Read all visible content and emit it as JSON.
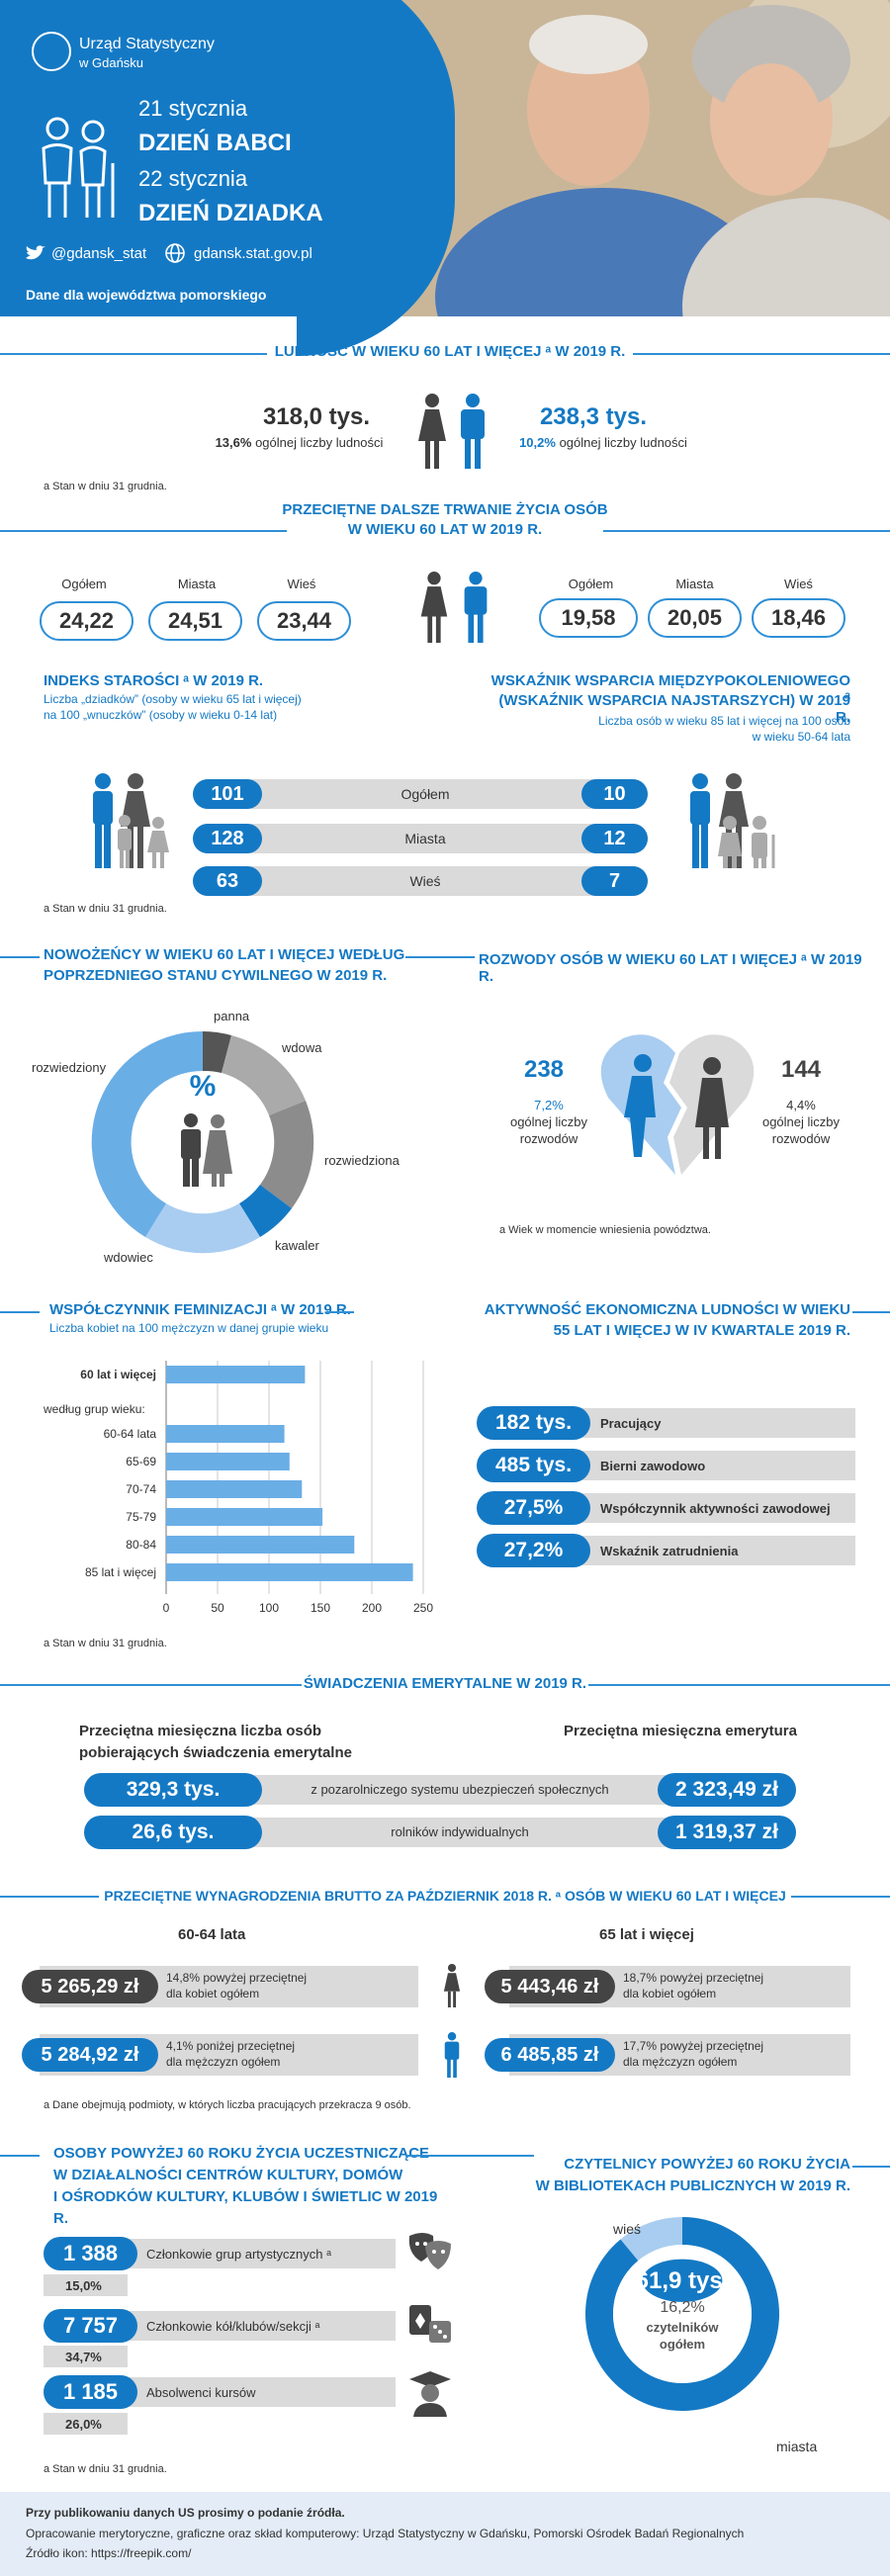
{
  "header": {
    "org_name": "Urząd Statystyczny",
    "org_sub": "w Gdańsku",
    "date1": "21 stycznia",
    "title1": "DZIEŃ BABCI",
    "date2": "22 stycznia",
    "title2": "DZIEŃ DZIADKA",
    "twitter": "@gdansk_stat",
    "website": "gdansk.stat.gov.pl",
    "region": "Dane dla województwa pomorskiego"
  },
  "population": {
    "title": "LUDNOŚĆ W WIEKU 60 LAT I WIĘCEJ ᵃ W 2019 R.",
    "women_value": "318,0 tys.",
    "women_pct": "13,6%",
    "women_desc": "ogólnej liczby ludności",
    "men_value": "238,3 tys.",
    "men_pct": "10,2%",
    "men_desc": "ogólnej liczby ludności",
    "footnote": "a Stan w dniu 31 grudnia."
  },
  "life": {
    "title1": "PRZECIĘTNE DALSZE TRWANIE ŻYCIA OSÓB",
    "title2": "W WIEKU 60 LAT W 2019 R.",
    "labels": [
      "Ogółem",
      "Miasta",
      "Wieś"
    ],
    "women": [
      "24,22",
      "24,51",
      "23,44"
    ],
    "men": [
      "19,58",
      "20,05",
      "18,46"
    ]
  },
  "ageing": {
    "title": "INDEKS STAROŚCI ᵃ W 2019 R.",
    "desc1": "Liczba „dziadków” (osoby w wieku 65 lat i więcej)",
    "desc2": "na 100 „wnuczków” (osoby w wieku 0-14 lat)",
    "support_title1": "WSKAŹNIK WSPARCIA MIĘDZYPOKOLENIOWEGO ᵃ",
    "support_title2": "(WSKAŹNIK WSPARCIA NAJSTARSZYCH) W 2019 R.",
    "support_desc1": "Liczba osób w wieku 85 lat i więcej na 100 osób",
    "support_desc2": "w wieku 50-64 lata",
    "rows": [
      {
        "label": "Ogółem",
        "left": "101",
        "right": "10"
      },
      {
        "label": "Miasta",
        "left": "128",
        "right": "12"
      },
      {
        "label": "Wieś",
        "left": "63",
        "right": "7"
      }
    ],
    "footnote": "a Stan w dniu 31 grudnia."
  },
  "marriage": {
    "title1": "NOWOŻEŃCY W WIEKU 60 LAT I WIĘCEJ WEDŁUG",
    "title2": "POPRZEDNIEGO STANU CYWILNEGO W 2019 R.",
    "center": "%",
    "labels": {
      "panna": "panna",
      "wdowa": "wdowa",
      "rozwiedziona": "rozwiedziona",
      "kawaler": "kawaler",
      "wdowiec": "wdowiec",
      "rozwiedziony": "rozwiedziony"
    },
    "colors": {
      "dark": "#555555",
      "grey": "#aaaaaa",
      "mid": "#8c8c8c",
      "blue": "#1479c4",
      "light": "#a9cdf0",
      "lightblue": "#6aaee6"
    }
  },
  "divorce": {
    "title": "ROZWODY OSÓB W WIEKU 60 LAT I WIĘCEJ ᵃ W 2019 R.",
    "men_value": "238",
    "men_pct": "7,2%",
    "men_desc1": "ogólnej liczby",
    "men_desc2": "rozwodów",
    "women_value": "144",
    "women_pct": "4,4%",
    "women_desc1": "ogólnej liczby",
    "women_desc2": "rozwodów",
    "footnote": "a Wiek w momencie wniesienia powództwa."
  },
  "feminization": {
    "title": "WSPÓŁCZYNNIK FEMINIZACJI ᵃ W 2019 R.",
    "subtitle": "Liczba kobiet na 100 mężczyzn w danej grupie wieku",
    "group_header": "według grup wieku:",
    "footnote": "a Stan w dniu 31 grudnia."
  },
  "chart_data": {
    "type": "bar",
    "orientation": "horizontal",
    "categories": [
      "60 lat i więcej",
      "60-64 lata",
      "65-69",
      "70-74",
      "75-79",
      "80-84",
      "85 lat i więcej"
    ],
    "values": [
      135,
      115,
      120,
      132,
      152,
      183,
      240
    ],
    "xlim": [
      0,
      250
    ],
    "xticks": [
      "0",
      "50",
      "100",
      "150",
      "200",
      "250"
    ],
    "grid": true,
    "bar_color": "#6aaee6"
  },
  "activity": {
    "title1": "AKTYWNOŚĆ EKONOMICZNA LUDNOŚCI W WIEKU",
    "title2": "55 LAT I WIĘCEJ W IV KWARTALE 2019 R.",
    "rows": [
      {
        "value": "182 tys.",
        "label": "Pracujący"
      },
      {
        "value": "485 tys.",
        "label": "Bierni zawodowo"
      },
      {
        "value": "27,5%",
        "label": "Współczynnik aktywności zawodowej"
      },
      {
        "value": "27,2%",
        "label": "Wskaźnik zatrudnienia"
      }
    ]
  },
  "pensions": {
    "title": "ŚWIADCZENIA EMERYTALNE W 2019 R.",
    "left_head1": "Przeciętna miesięczna liczba osób",
    "left_head2": "pobierających świadczenia emerytalne",
    "right_head": "Przeciętna miesięczna emerytura",
    "rows": [
      {
        "left": "329,3 tys.",
        "label": "z pozarolniczego systemu ubezpieczeń społecznych",
        "right": "2 323,49 zł"
      },
      {
        "left": "26,6 tys.",
        "label": "rolników indywidualnych",
        "right": "1 319,37 zł"
      }
    ]
  },
  "wages": {
    "title": "PRZECIĘTNE WYNAGRODZENIA BRUTTO ZA PAŹDZIERNIK 2018 R. ᵃ OSÓB W WIEKU 60 LAT I WIĘCEJ",
    "left_head": "60-64 lata",
    "right_head": "65 lat i więcej",
    "rows": [
      {
        "left_value": "5 265,29 zł",
        "left_desc1": "14,8% powyżej przeciętnej",
        "left_desc2": "dla kobiet ogółem",
        "right_value": "5 443,46 zł",
        "right_desc1": "18,7% powyżej przeciętnej",
        "right_desc2": "dla kobiet ogółem"
      },
      {
        "left_value": "5 284,92 zł",
        "left_desc1": "4,1% poniżej przeciętnej",
        "left_desc2": "dla mężczyzn ogółem",
        "right_value": "6 485,85 zł",
        "right_desc1": "17,7% powyżej przeciętnej",
        "right_desc2": "dla mężczyzn ogółem"
      }
    ],
    "footnote": "a Dane obejmują podmioty, w których liczba pracujących przekracza 9 osób."
  },
  "culture": {
    "title1": "OSOBY POWYŻEJ 60 ROKU ŻYCIA UCZESTNICZĄCE",
    "title2": "W DZIAŁALNOŚCI CENTRÓW KULTURY, DOMÓW",
    "title3": "I OŚRODKÓW KULTURY, KLUBÓW I ŚWIETLIC W 2019",
    "title4": "R.",
    "rows": [
      {
        "value": "1 388",
        "label": "Członkowie grup artystycznych ᵃ",
        "pct": "15,0%"
      },
      {
        "value": "7 757",
        "label": "Członkowie kół/klubów/sekcji ᵃ",
        "pct": "34,7%"
      },
      {
        "value": "1 185",
        "label": "Absolwenci kursów",
        "pct": "26,0%"
      }
    ],
    "footnote": "a Stan w dniu 31 grudnia."
  },
  "readers": {
    "title1": "CZYTELNICY POWYŻEJ 60 ROKU ŻYCIA",
    "title2": "W BIBLIOTEKACH PUBLICZNYCH W 2019 R.",
    "village_label": "wieś",
    "city_label": "miasta",
    "value": "61,9 tys.",
    "pct": "16,2%",
    "desc1": "czytelników",
    "desc2": "ogółem",
    "city_share": 0.89
  },
  "footer": {
    "line1": "Przy publikowaniu danych US prosimy o podanie źródła.",
    "line2": "Opracowanie merytoryczne, graficzne oraz skład komputerowy: Urząd Statystyczny w Gdańsku, Pomorski Ośrodek Badań Regionalnych",
    "line3": "Źródło ikon: https://freepik.com/"
  }
}
